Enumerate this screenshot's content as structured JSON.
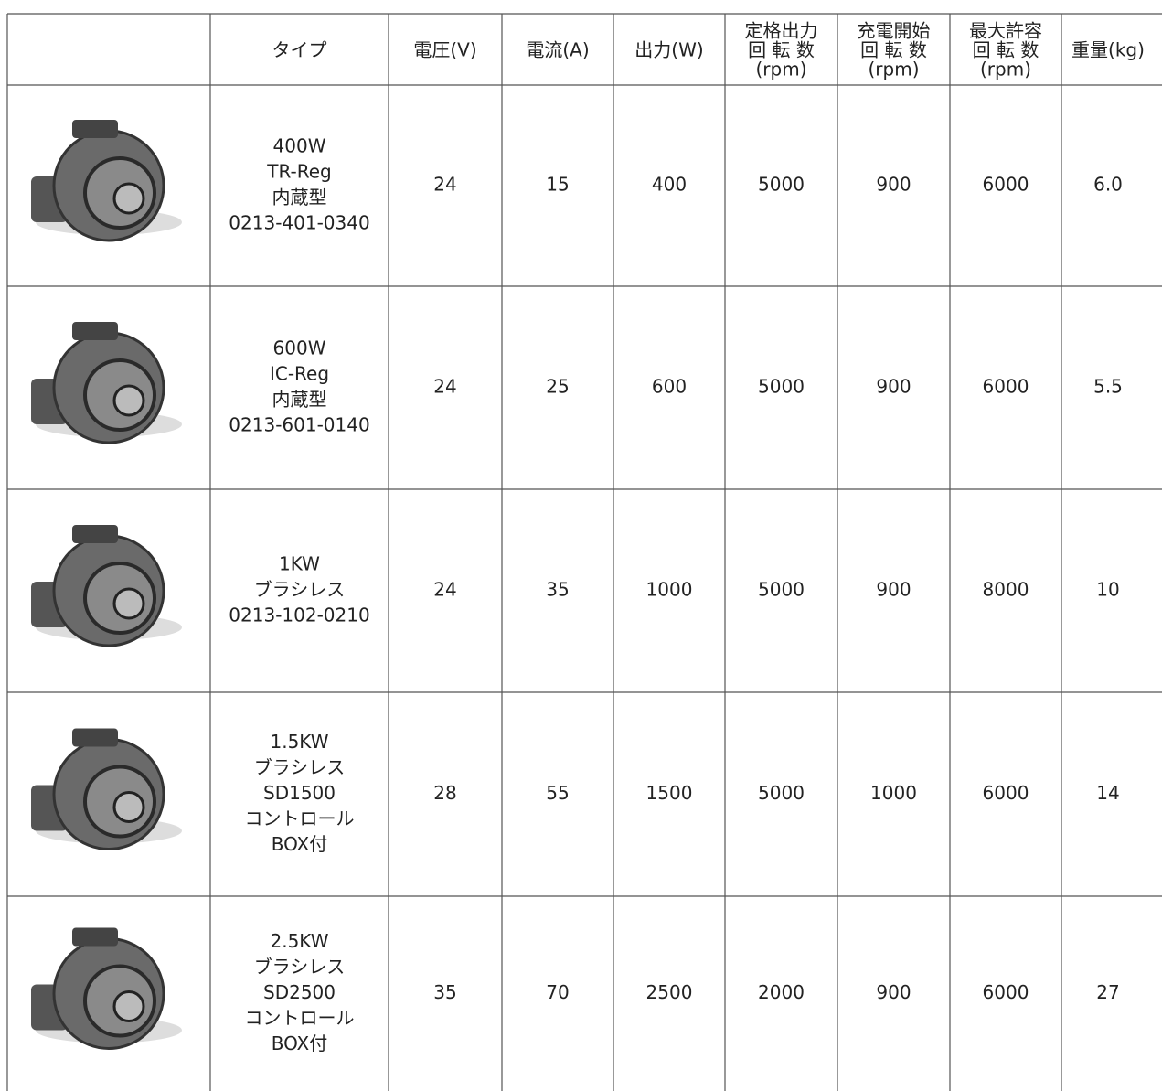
{
  "table": {
    "header": [
      [
        "タイプ"
      ],
      [
        "電圧(V)"
      ],
      [
        "電流(A)"
      ],
      [
        "出力(W)"
      ],
      [
        "定格出力",
        "回 転 数",
        "(rpm)"
      ],
      [
        "充電開始",
        "回 転 数",
        "(rpm)"
      ],
      [
        "最大許容",
        "回 転 数",
        "(rpm)"
      ],
      [
        "重量(kg)"
      ]
    ],
    "rows": [
      {
        "type": [
          "400W",
          "TR-Reg",
          "内蔵型",
          "0213-401-0340"
        ],
        "values": [
          "24",
          "15",
          "400",
          "5000",
          "900",
          "6000",
          "6.0"
        ]
      },
      {
        "type": [
          "600W",
          "IC-Reg",
          "内蔵型",
          "0213-601-0140"
        ],
        "values": [
          "24",
          "25",
          "600",
          "5000",
          "900",
          "6000",
          "5.5"
        ]
      },
      {
        "type": [
          "1KW",
          "ブラシレス",
          "0213-102-0210"
        ],
        "values": [
          "24",
          "35",
          "1000",
          "5000",
          "900",
          "8000",
          "10"
        ]
      },
      {
        "type": [
          "1.5KW",
          "ブラシレス",
          "SD1500",
          "コントロール",
          "BOX付"
        ],
        "values": [
          "28",
          "55",
          "1500",
          "5000",
          "1000",
          "6000",
          "14"
        ]
      },
      {
        "type": [
          "2.5KW",
          "ブラシレス",
          "SD2500",
          "コントロール",
          "BOX付"
        ],
        "values": [
          "35",
          "70",
          "2500",
          "2000",
          "900",
          "6000",
          "27"
        ]
      }
    ]
  }
}
